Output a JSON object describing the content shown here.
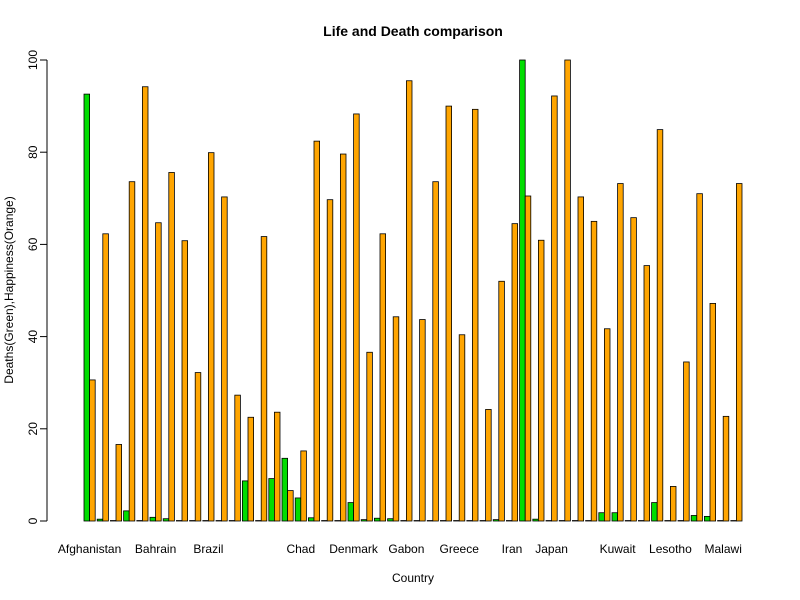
{
  "chart_data": {
    "type": "bar",
    "title": "Life and Death comparison",
    "xlabel": "Country",
    "ylabel": "Deaths(Green),Happiness(Orange)",
    "ylim": [
      0,
      100
    ],
    "yticks": [
      0,
      20,
      40,
      60,
      80,
      100
    ],
    "grid": false,
    "x_tick_labels": [
      {
        "index": 0,
        "label": "Afghanistan"
      },
      {
        "index": 5,
        "label": "Bahrain"
      },
      {
        "index": 9,
        "label": "Brazil"
      },
      {
        "index": 16,
        "label": "Chad"
      },
      {
        "index": 20,
        "label": "Denmark"
      },
      {
        "index": 24,
        "label": "Gabon"
      },
      {
        "index": 28,
        "label": "Greece"
      },
      {
        "index": 32,
        "label": "Iran"
      },
      {
        "index": 35,
        "label": "Japan"
      },
      {
        "index": 40,
        "label": "Kuwait"
      },
      {
        "index": 44,
        "label": "Lesotho"
      },
      {
        "index": 48,
        "label": "Malawi"
      }
    ],
    "series": [
      {
        "color": "#00dd00",
        "values": [
          92.6,
          0.4,
          0.1,
          2.2,
          0.1,
          0.8,
          0.5,
          0.1,
          0.1,
          0.1,
          0.1,
          0.1,
          8.7,
          0.1,
          9.2,
          13.6,
          5.0,
          0.7,
          0.1,
          0.1,
          4.0,
          0.3,
          0.6,
          0.5,
          0.1,
          0.1,
          0.1,
          0.1,
          0.1,
          0.1,
          0.1,
          0.3,
          0.1,
          100,
          0.4,
          0.1,
          0.1,
          0.1,
          0.1,
          1.8,
          1.8,
          0.1,
          0.1,
          4.0,
          0.1,
          0.1,
          1.2,
          1.0,
          0.1,
          0.1
        ]
      },
      {
        "color": "#ffa500",
        "values": [
          30.6,
          62.3,
          16.6,
          73.6,
          94.2,
          64.7,
          75.6,
          60.8,
          32.2,
          79.9,
          70.3,
          27.3,
          22.5,
          61.7,
          23.6,
          6.6,
          15.2,
          82.4,
          69.7,
          79.6,
          88.3,
          36.6,
          62.3,
          44.3,
          95.5,
          43.7,
          73.6,
          90.0,
          40.4,
          89.3,
          24.2,
          52.0,
          64.5,
          70.5,
          60.9,
          92.2,
          100,
          70.3,
          65.0,
          41.7,
          73.2,
          65.8,
          55.4,
          84.9,
          7.5,
          34.5,
          71.0,
          47.2,
          22.7,
          73.2
        ]
      }
    ]
  }
}
